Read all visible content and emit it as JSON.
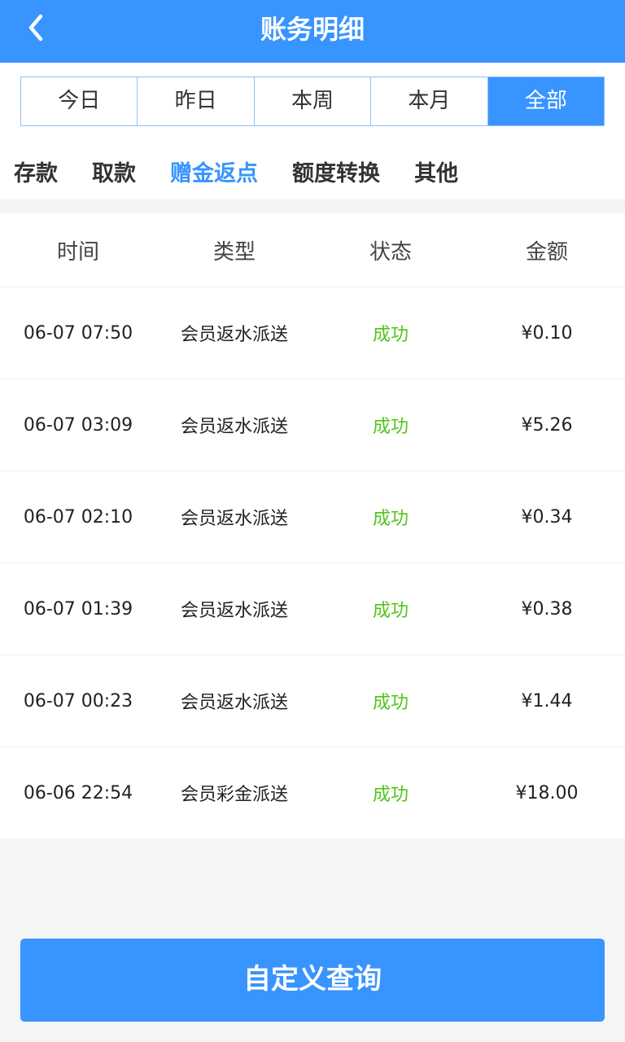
{
  "header": {
    "title": "账务明细",
    "back_icon": "chevron-left-icon"
  },
  "range_tabs": [
    {
      "label": "今日"
    },
    {
      "label": "昨日"
    },
    {
      "label": "本周"
    },
    {
      "label": "本月"
    },
    {
      "label": "全部",
      "active": true
    }
  ],
  "category_tabs": [
    {
      "label": "存款"
    },
    {
      "label": "取款"
    },
    {
      "label": "赠金返点",
      "active": true
    },
    {
      "label": "额度转换"
    },
    {
      "label": "其他"
    }
  ],
  "table": {
    "columns": [
      "时间",
      "类型",
      "状态",
      "金额"
    ],
    "rows": [
      {
        "time": "06-07 07:50",
        "type": "会员返水派送",
        "status": "成功",
        "amount": "¥0.10"
      },
      {
        "time": "06-07 03:09",
        "type": "会员返水派送",
        "status": "成功",
        "amount": "¥5.26"
      },
      {
        "time": "06-07 02:10",
        "type": "会员返水派送",
        "status": "成功",
        "amount": "¥0.34"
      },
      {
        "time": "06-07 01:39",
        "type": "会员返水派送",
        "status": "成功",
        "amount": "¥0.38"
      },
      {
        "time": "06-07 00:23",
        "type": "会员返水派送",
        "status": "成功",
        "amount": "¥1.44"
      },
      {
        "time": "06-06 22:54",
        "type": "会员彩金派送",
        "status": "成功",
        "amount": "¥18.00"
      }
    ]
  },
  "custom_query_label": "自定义查询",
  "colors": {
    "primary": "#3894fe",
    "success": "#52c41a",
    "background": "#f4f5f5"
  }
}
